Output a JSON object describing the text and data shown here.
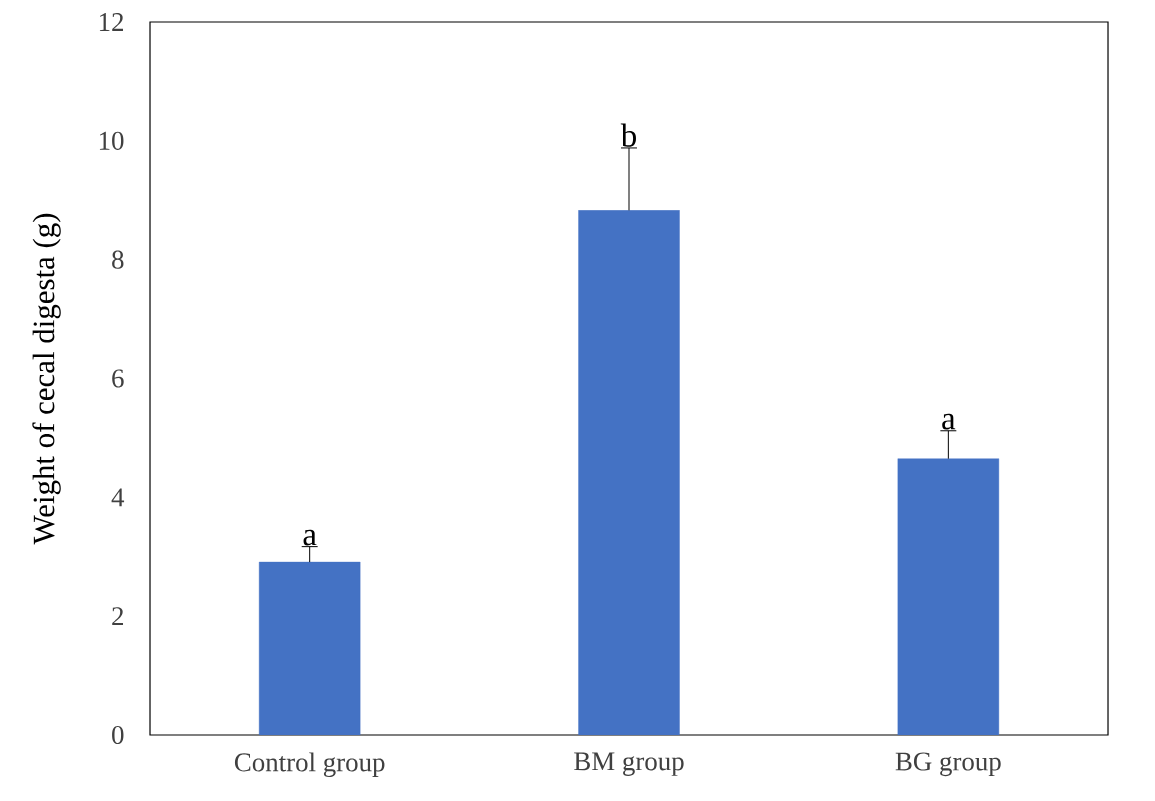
{
  "chart_data": {
    "type": "bar",
    "ylabel": "Weight of cecal digesta (g)",
    "categories": [
      "Control group",
      "BM group",
      "BG group"
    ],
    "values": [
      2.91,
      8.83,
      4.65
    ],
    "color": "#4472c4",
    "errors": [
      [
        2.91,
        3.17
      ],
      [
        8.83,
        9.88
      ],
      [
        4.65,
        5.12
      ]
    ],
    "ylim": [
      0,
      12
    ],
    "yticks": [
      0,
      2,
      4,
      6,
      8,
      10,
      12
    ],
    "grid": false,
    "annotations": [
      {
        "text": "a",
        "x": "Control group",
        "y": 3.17
      },
      {
        "text": "b",
        "x": "BM group",
        "y": 9.88
      },
      {
        "text": "a",
        "x": "BG group",
        "y": 5.12
      }
    ]
  }
}
